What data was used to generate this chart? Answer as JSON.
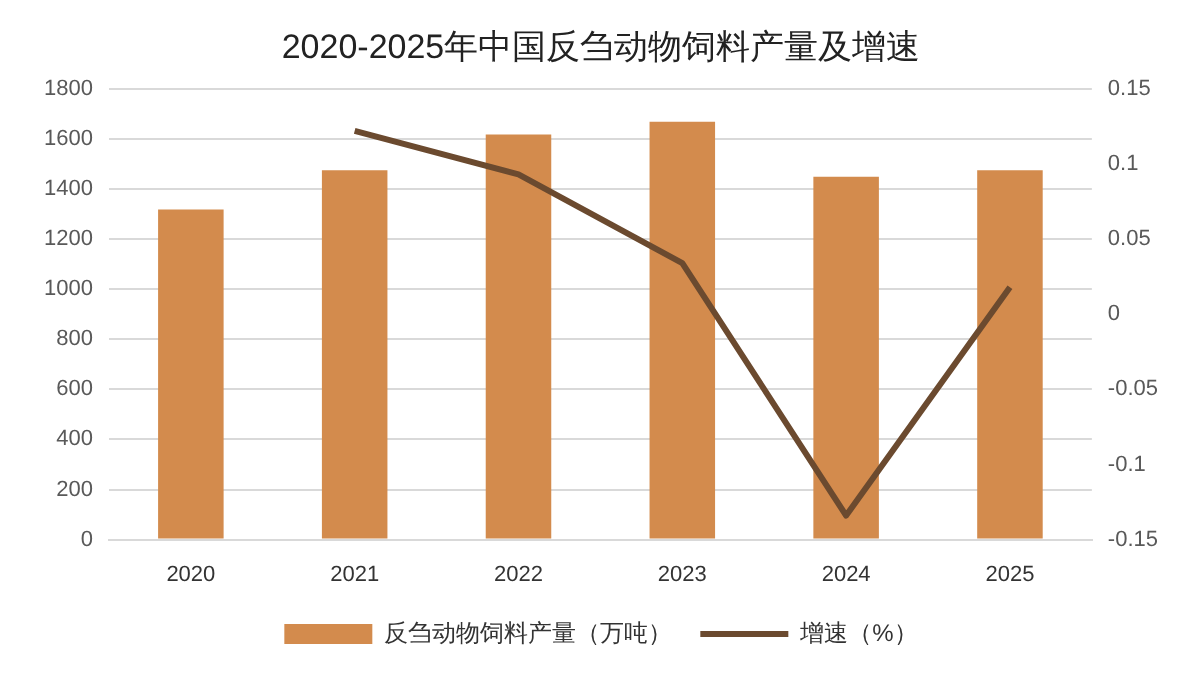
{
  "chart_data": {
    "type": "bar",
    "title": "2020-2025年中国反刍动物饲料产量及增速",
    "categories": [
      "2020",
      "2021",
      "2022",
      "2023",
      "2024",
      "2025"
    ],
    "series": [
      {
        "name": "反刍动物饲料产量（万吨）",
        "color": "#d38b4d",
        "values": [
          1318,
          1475,
          1618,
          1668,
          1449,
          1475
        ]
      },
      {
        "name": "增速（%）",
        "type": "line",
        "axis": "y2",
        "color": "#6b4a2f",
        "values": [
          null,
          0.122,
          0.093,
          0.034,
          -0.134,
          0.018
        ]
      }
    ],
    "ylim": [
      0,
      1800
    ],
    "yticks": [
      0,
      200,
      400,
      600,
      800,
      1000,
      1200,
      1400,
      1600,
      1800
    ],
    "y2lim": [
      -0.15,
      0.15
    ],
    "y2ticks": [
      -0.15,
      -0.1,
      -0.05,
      0,
      0.05,
      0.1,
      0.15
    ],
    "grid": "y",
    "legend": "bottom",
    "marker": "none",
    "line_style": "solid"
  }
}
